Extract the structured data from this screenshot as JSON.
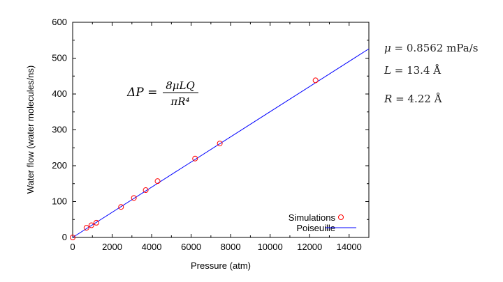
{
  "chart_data": {
    "type": "scatter",
    "xlabel": "Pressure (atm)",
    "ylabel": "Water flow (water molecules/ns)",
    "xlim": [
      0,
      15000
    ],
    "ylim": [
      0,
      600
    ],
    "xticks": [
      0,
      2000,
      4000,
      6000,
      8000,
      10000,
      12000,
      14000
    ],
    "yticks": [
      0,
      100,
      200,
      300,
      400,
      500,
      600
    ],
    "grid": false,
    "legend_position": "bottom-right",
    "series": [
      {
        "name": "Simulations",
        "kind": "markers",
        "marker": "open-circle",
        "color": "#ff0000",
        "points": [
          {
            "x": 0,
            "y": 0
          },
          {
            "x": 700,
            "y": 27
          },
          {
            "x": 950,
            "y": 34
          },
          {
            "x": 1200,
            "y": 41
          },
          {
            "x": 2450,
            "y": 85
          },
          {
            "x": 3100,
            "y": 110
          },
          {
            "x": 3700,
            "y": 132
          },
          {
            "x": 4300,
            "y": 157
          },
          {
            "x": 6200,
            "y": 220
          },
          {
            "x": 7450,
            "y": 262
          },
          {
            "x": 12300,
            "y": 438
          }
        ]
      },
      {
        "name": "Poiseuille",
        "kind": "line",
        "color": "#0000ff",
        "points": [
          {
            "x": 0,
            "y": 0
          },
          {
            "x": 15000,
            "y": 526
          }
        ]
      }
    ],
    "annotation": {
      "equation": {
        "lhs": "ΔP =",
        "numerator": "8μLQ",
        "denominator": "πR⁴"
      }
    }
  },
  "parameters": {
    "mu": {
      "symbol": "μ",
      "eq": " = ",
      "value": "0.8562 mPa/s"
    },
    "L": {
      "symbol": "L",
      "eq": " = ",
      "value": "13.4 Å"
    },
    "R": {
      "symbol": "R",
      "eq": " = ",
      "value": "4.22 Å"
    }
  }
}
